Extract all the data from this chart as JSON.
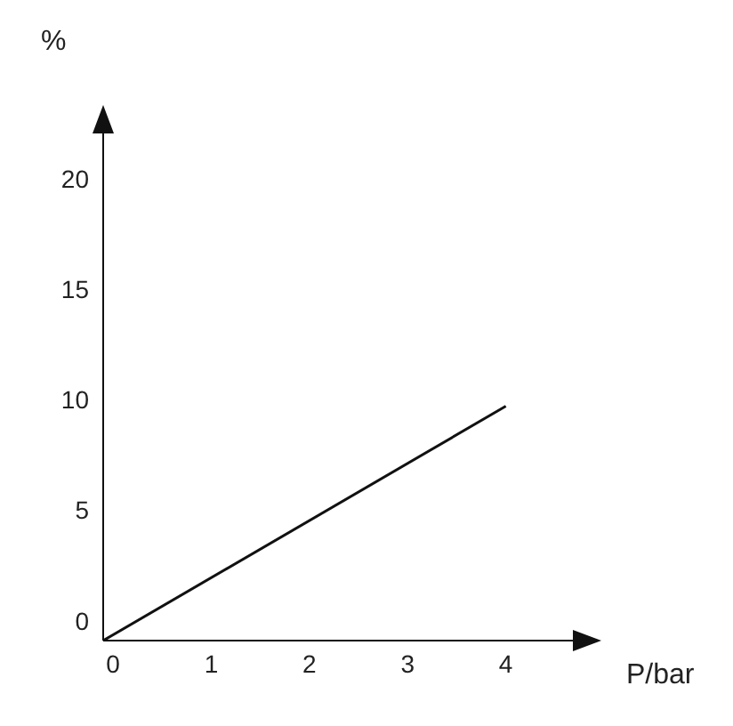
{
  "chart_data": {
    "type": "line",
    "xlabel": "P/bar",
    "ylabel": "%",
    "x": [
      -0.1,
      4
    ],
    "series": [
      {
        "color": "#111111",
        "values": [
          -0.9,
          9.7
        ]
      }
    ],
    "xlim": [
      -0.1,
      4.9
    ],
    "xticks": [
      0,
      1,
      2,
      3,
      4
    ],
    "ylim": [
      -0.9,
      23
    ],
    "yticks": [
      0,
      5,
      10,
      15,
      20
    ],
    "grid": false,
    "legend": false,
    "marker": "none",
    "line_style": "solid"
  }
}
